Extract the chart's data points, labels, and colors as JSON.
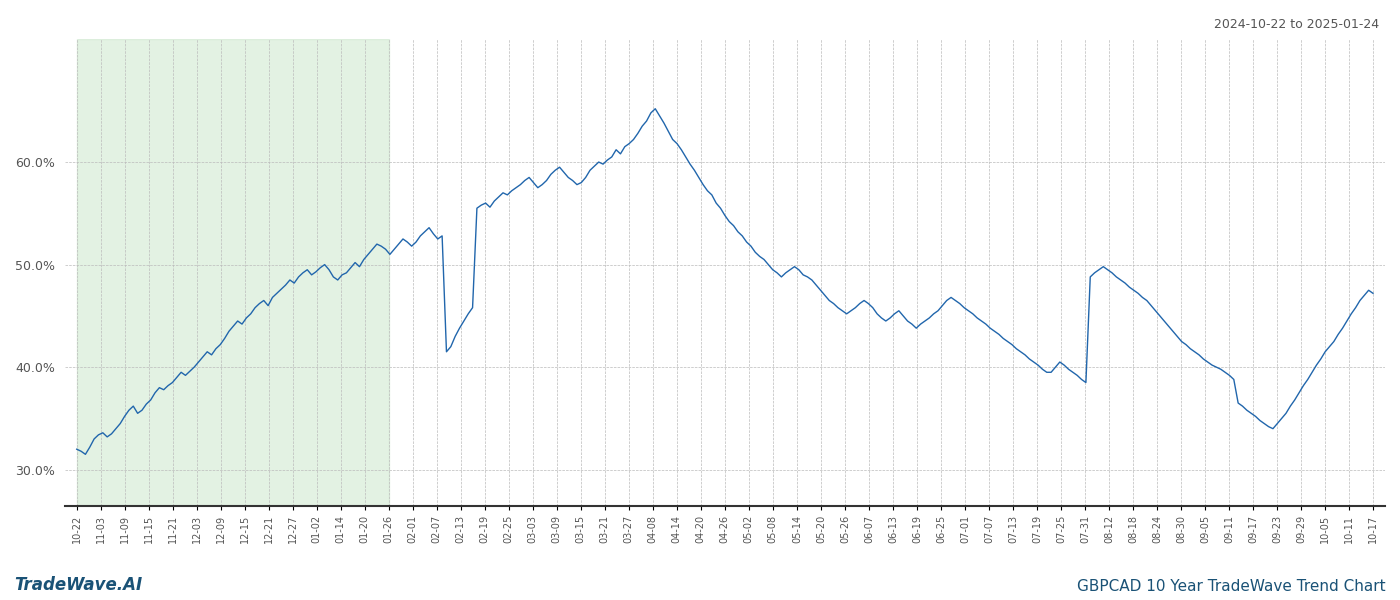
{
  "title_right": "2024-10-22 to 2025-01-24",
  "footer_left": "TradeWave.AI",
  "footer_right": "GBPCAD 10 Year TradeWave Trend Chart",
  "line_color": "#2166ac",
  "shade_color": "#c8e6c9",
  "shade_alpha": 0.5,
  "background_color": "#ffffff",
  "grid_color": "#bbbbbb",
  "ylim": [
    0.265,
    0.72
  ],
  "yticks": [
    0.3,
    0.4,
    0.5,
    0.6
  ],
  "ytick_labels": [
    "30.0%",
    "40.0%",
    "50.0%",
    "60.0%"
  ],
  "x_labels": [
    "10-22",
    "11-03",
    "11-09",
    "11-15",
    "11-21",
    "12-03",
    "12-09",
    "12-15",
    "12-21",
    "12-27",
    "01-02",
    "01-14",
    "01-20",
    "01-26",
    "02-01",
    "02-07",
    "02-13",
    "02-19",
    "02-25",
    "03-03",
    "03-09",
    "03-15",
    "03-21",
    "03-27",
    "04-08",
    "04-14",
    "04-20",
    "04-26",
    "05-02",
    "05-08",
    "05-14",
    "05-20",
    "05-26",
    "06-07",
    "06-13",
    "06-19",
    "06-25",
    "07-01",
    "07-07",
    "07-13",
    "07-19",
    "07-25",
    "07-31",
    "08-12",
    "08-18",
    "08-24",
    "08-30",
    "09-05",
    "09-11",
    "09-17",
    "09-23",
    "09-29",
    "10-05",
    "10-11",
    "10-17"
  ],
  "shade_start_label": "10-22",
  "shade_end_label": "01-26",
  "values": [
    0.32,
    0.318,
    0.315,
    0.322,
    0.33,
    0.334,
    0.336,
    0.332,
    0.335,
    0.34,
    0.345,
    0.352,
    0.358,
    0.362,
    0.355,
    0.358,
    0.364,
    0.368,
    0.375,
    0.38,
    0.378,
    0.382,
    0.385,
    0.39,
    0.395,
    0.392,
    0.396,
    0.4,
    0.405,
    0.41,
    0.415,
    0.412,
    0.418,
    0.422,
    0.428,
    0.435,
    0.44,
    0.445,
    0.442,
    0.448,
    0.452,
    0.458,
    0.462,
    0.465,
    0.46,
    0.468,
    0.472,
    0.476,
    0.48,
    0.485,
    0.482,
    0.488,
    0.492,
    0.495,
    0.49,
    0.493,
    0.497,
    0.5,
    0.495,
    0.488,
    0.485,
    0.49,
    0.492,
    0.497,
    0.502,
    0.498,
    0.505,
    0.51,
    0.515,
    0.52,
    0.518,
    0.515,
    0.51,
    0.515,
    0.52,
    0.525,
    0.522,
    0.518,
    0.522,
    0.528,
    0.532,
    0.536,
    0.53,
    0.525,
    0.528,
    0.415,
    0.42,
    0.43,
    0.438,
    0.445,
    0.452,
    0.458,
    0.555,
    0.558,
    0.56,
    0.556,
    0.562,
    0.566,
    0.57,
    0.568,
    0.572,
    0.575,
    0.578,
    0.582,
    0.585,
    0.58,
    0.575,
    0.578,
    0.582,
    0.588,
    0.592,
    0.595,
    0.59,
    0.585,
    0.582,
    0.578,
    0.58,
    0.585,
    0.592,
    0.596,
    0.6,
    0.598,
    0.602,
    0.605,
    0.612,
    0.608,
    0.615,
    0.618,
    0.622,
    0.628,
    0.635,
    0.64,
    0.648,
    0.652,
    0.645,
    0.638,
    0.63,
    0.622,
    0.618,
    0.612,
    0.605,
    0.598,
    0.592,
    0.585,
    0.578,
    0.572,
    0.568,
    0.56,
    0.555,
    0.548,
    0.542,
    0.538,
    0.532,
    0.528,
    0.522,
    0.518,
    0.512,
    0.508,
    0.505,
    0.5,
    0.495,
    0.492,
    0.488,
    0.492,
    0.495,
    0.498,
    0.495,
    0.49,
    0.488,
    0.485,
    0.48,
    0.475,
    0.47,
    0.465,
    0.462,
    0.458,
    0.455,
    0.452,
    0.455,
    0.458,
    0.462,
    0.465,
    0.462,
    0.458,
    0.452,
    0.448,
    0.445,
    0.448,
    0.452,
    0.455,
    0.45,
    0.445,
    0.442,
    0.438,
    0.442,
    0.445,
    0.448,
    0.452,
    0.455,
    0.46,
    0.465,
    0.468,
    0.465,
    0.462,
    0.458,
    0.455,
    0.452,
    0.448,
    0.445,
    0.442,
    0.438,
    0.435,
    0.432,
    0.428,
    0.425,
    0.422,
    0.418,
    0.415,
    0.412,
    0.408,
    0.405,
    0.402,
    0.398,
    0.395,
    0.395,
    0.4,
    0.405,
    0.402,
    0.398,
    0.395,
    0.392,
    0.388,
    0.385,
    0.488,
    0.492,
    0.495,
    0.498,
    0.495,
    0.492,
    0.488,
    0.485,
    0.482,
    0.478,
    0.475,
    0.472,
    0.468,
    0.465,
    0.46,
    0.455,
    0.45,
    0.445,
    0.44,
    0.435,
    0.43,
    0.425,
    0.422,
    0.418,
    0.415,
    0.412,
    0.408,
    0.405,
    0.402,
    0.4,
    0.398,
    0.395,
    0.392,
    0.388,
    0.365,
    0.362,
    0.358,
    0.355,
    0.352,
    0.348,
    0.345,
    0.342,
    0.34,
    0.345,
    0.35,
    0.355,
    0.362,
    0.368,
    0.375,
    0.382,
    0.388,
    0.395,
    0.402,
    0.408,
    0.415,
    0.42,
    0.425,
    0.432,
    0.438,
    0.445,
    0.452,
    0.458,
    0.465,
    0.47,
    0.475,
    0.472
  ]
}
